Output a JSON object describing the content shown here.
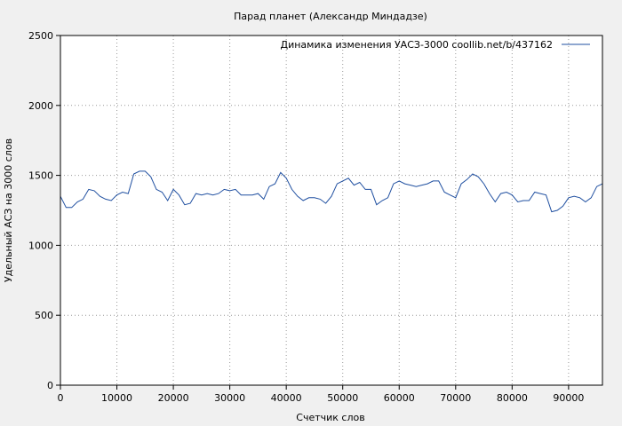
{
  "chart_data": {
    "type": "line",
    "title": "Парад планет (Александр Миндадзе)",
    "xlabel": "Счетчик слов",
    "ylabel": "Удельный АСЗ на 3000 слов",
    "xlim": [
      0,
      96000
    ],
    "ylim": [
      0,
      2500
    ],
    "xticks": [
      0,
      10000,
      20000,
      30000,
      40000,
      50000,
      60000,
      70000,
      80000,
      90000
    ],
    "yticks": [
      0,
      500,
      1000,
      1500,
      2000,
      2500
    ],
    "grid": true,
    "legend_position": "top-right",
    "series": [
      {
        "name": "Динамика изменения УАСЗ-3000  coollib.net/b/437162",
        "color": "#1f4fa0",
        "x": [
          0,
          1000,
          2000,
          3000,
          4000,
          5000,
          6000,
          7000,
          8000,
          9000,
          10000,
          11000,
          12000,
          13000,
          14000,
          15000,
          16000,
          17000,
          18000,
          19000,
          20000,
          21000,
          22000,
          23000,
          24000,
          25000,
          26000,
          27000,
          28000,
          29000,
          30000,
          31000,
          32000,
          33000,
          34000,
          35000,
          36000,
          37000,
          38000,
          39000,
          40000,
          41000,
          42000,
          43000,
          44000,
          45000,
          46000,
          47000,
          48000,
          49000,
          50000,
          51000,
          52000,
          53000,
          54000,
          55000,
          56000,
          57000,
          58000,
          59000,
          60000,
          61000,
          62000,
          63000,
          64000,
          65000,
          66000,
          67000,
          68000,
          69000,
          70000,
          71000,
          72000,
          73000,
          74000,
          75000,
          76000,
          77000,
          78000,
          79000,
          80000,
          81000,
          82000,
          83000,
          84000,
          85000,
          86000,
          87000,
          88000,
          89000,
          90000,
          91000,
          92000,
          93000,
          94000,
          95000,
          96000
        ],
        "y": [
          1350,
          1270,
          1270,
          1310,
          1330,
          1400,
          1390,
          1350,
          1330,
          1320,
          1360,
          1380,
          1370,
          1510,
          1530,
          1530,
          1490,
          1400,
          1380,
          1320,
          1400,
          1360,
          1290,
          1300,
          1370,
          1360,
          1370,
          1360,
          1370,
          1400,
          1390,
          1400,
          1360,
          1360,
          1360,
          1370,
          1330,
          1420,
          1440,
          1520,
          1480,
          1400,
          1350,
          1320,
          1340,
          1340,
          1330,
          1300,
          1350,
          1440,
          1460,
          1480,
          1430,
          1450,
          1400,
          1400,
          1290,
          1320,
          1340,
          1440,
          1460,
          1440,
          1430,
          1420,
          1430,
          1440,
          1460,
          1460,
          1380,
          1360,
          1340,
          1440,
          1470,
          1510,
          1490,
          1440,
          1370,
          1310,
          1370,
          1380,
          1360,
          1310,
          1320,
          1320,
          1380,
          1370,
          1360,
          1240,
          1250,
          1280,
          1340,
          1350,
          1340,
          1310,
          1340,
          1420,
          1440
        ]
      }
    ]
  }
}
